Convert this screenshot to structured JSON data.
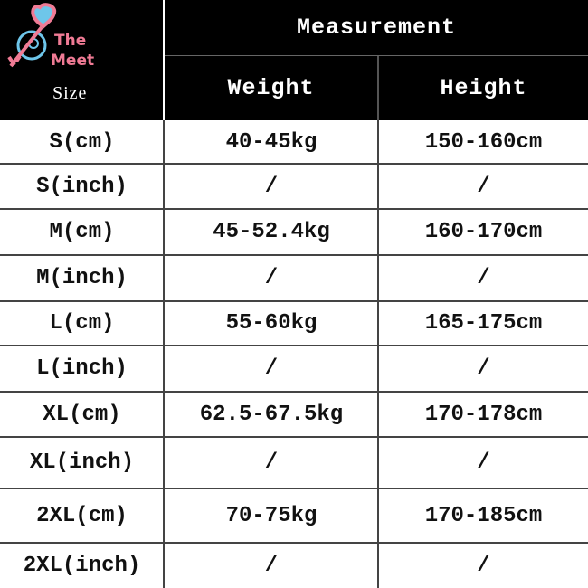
{
  "logo": {
    "line1": "The",
    "line2": "Meet",
    "colors": {
      "pink": "#f07b95",
      "blue": "#6ec6ea"
    }
  },
  "header": {
    "size_label": "Size",
    "group_label": "Measurement",
    "columns": [
      "Weight",
      "Height"
    ]
  },
  "rows": [
    {
      "size": "S(cm)",
      "weight": "40-45kg",
      "height": "150-160cm"
    },
    {
      "size": "S(inch)",
      "weight": "/",
      "height": "/"
    },
    {
      "size": "M(cm)",
      "weight": "45-52.4kg",
      "height": "160-170cm"
    },
    {
      "size": "M(inch)",
      "weight": "/",
      "height": "/"
    },
    {
      "size": "L(cm)",
      "weight": "55-60kg",
      "height": "165-175cm"
    },
    {
      "size": "L(inch)",
      "weight": "/",
      "height": "/"
    },
    {
      "size": "XL(cm)",
      "weight": "62.5-67.5kg",
      "height": "170-178cm"
    },
    {
      "size": "XL(inch)",
      "weight": "/",
      "height": "/"
    },
    {
      "size": "2XL(cm)",
      "weight": "70-75kg",
      "height": "170-185cm"
    },
    {
      "size": "2XL(inch)",
      "weight": "/",
      "height": "/"
    }
  ]
}
